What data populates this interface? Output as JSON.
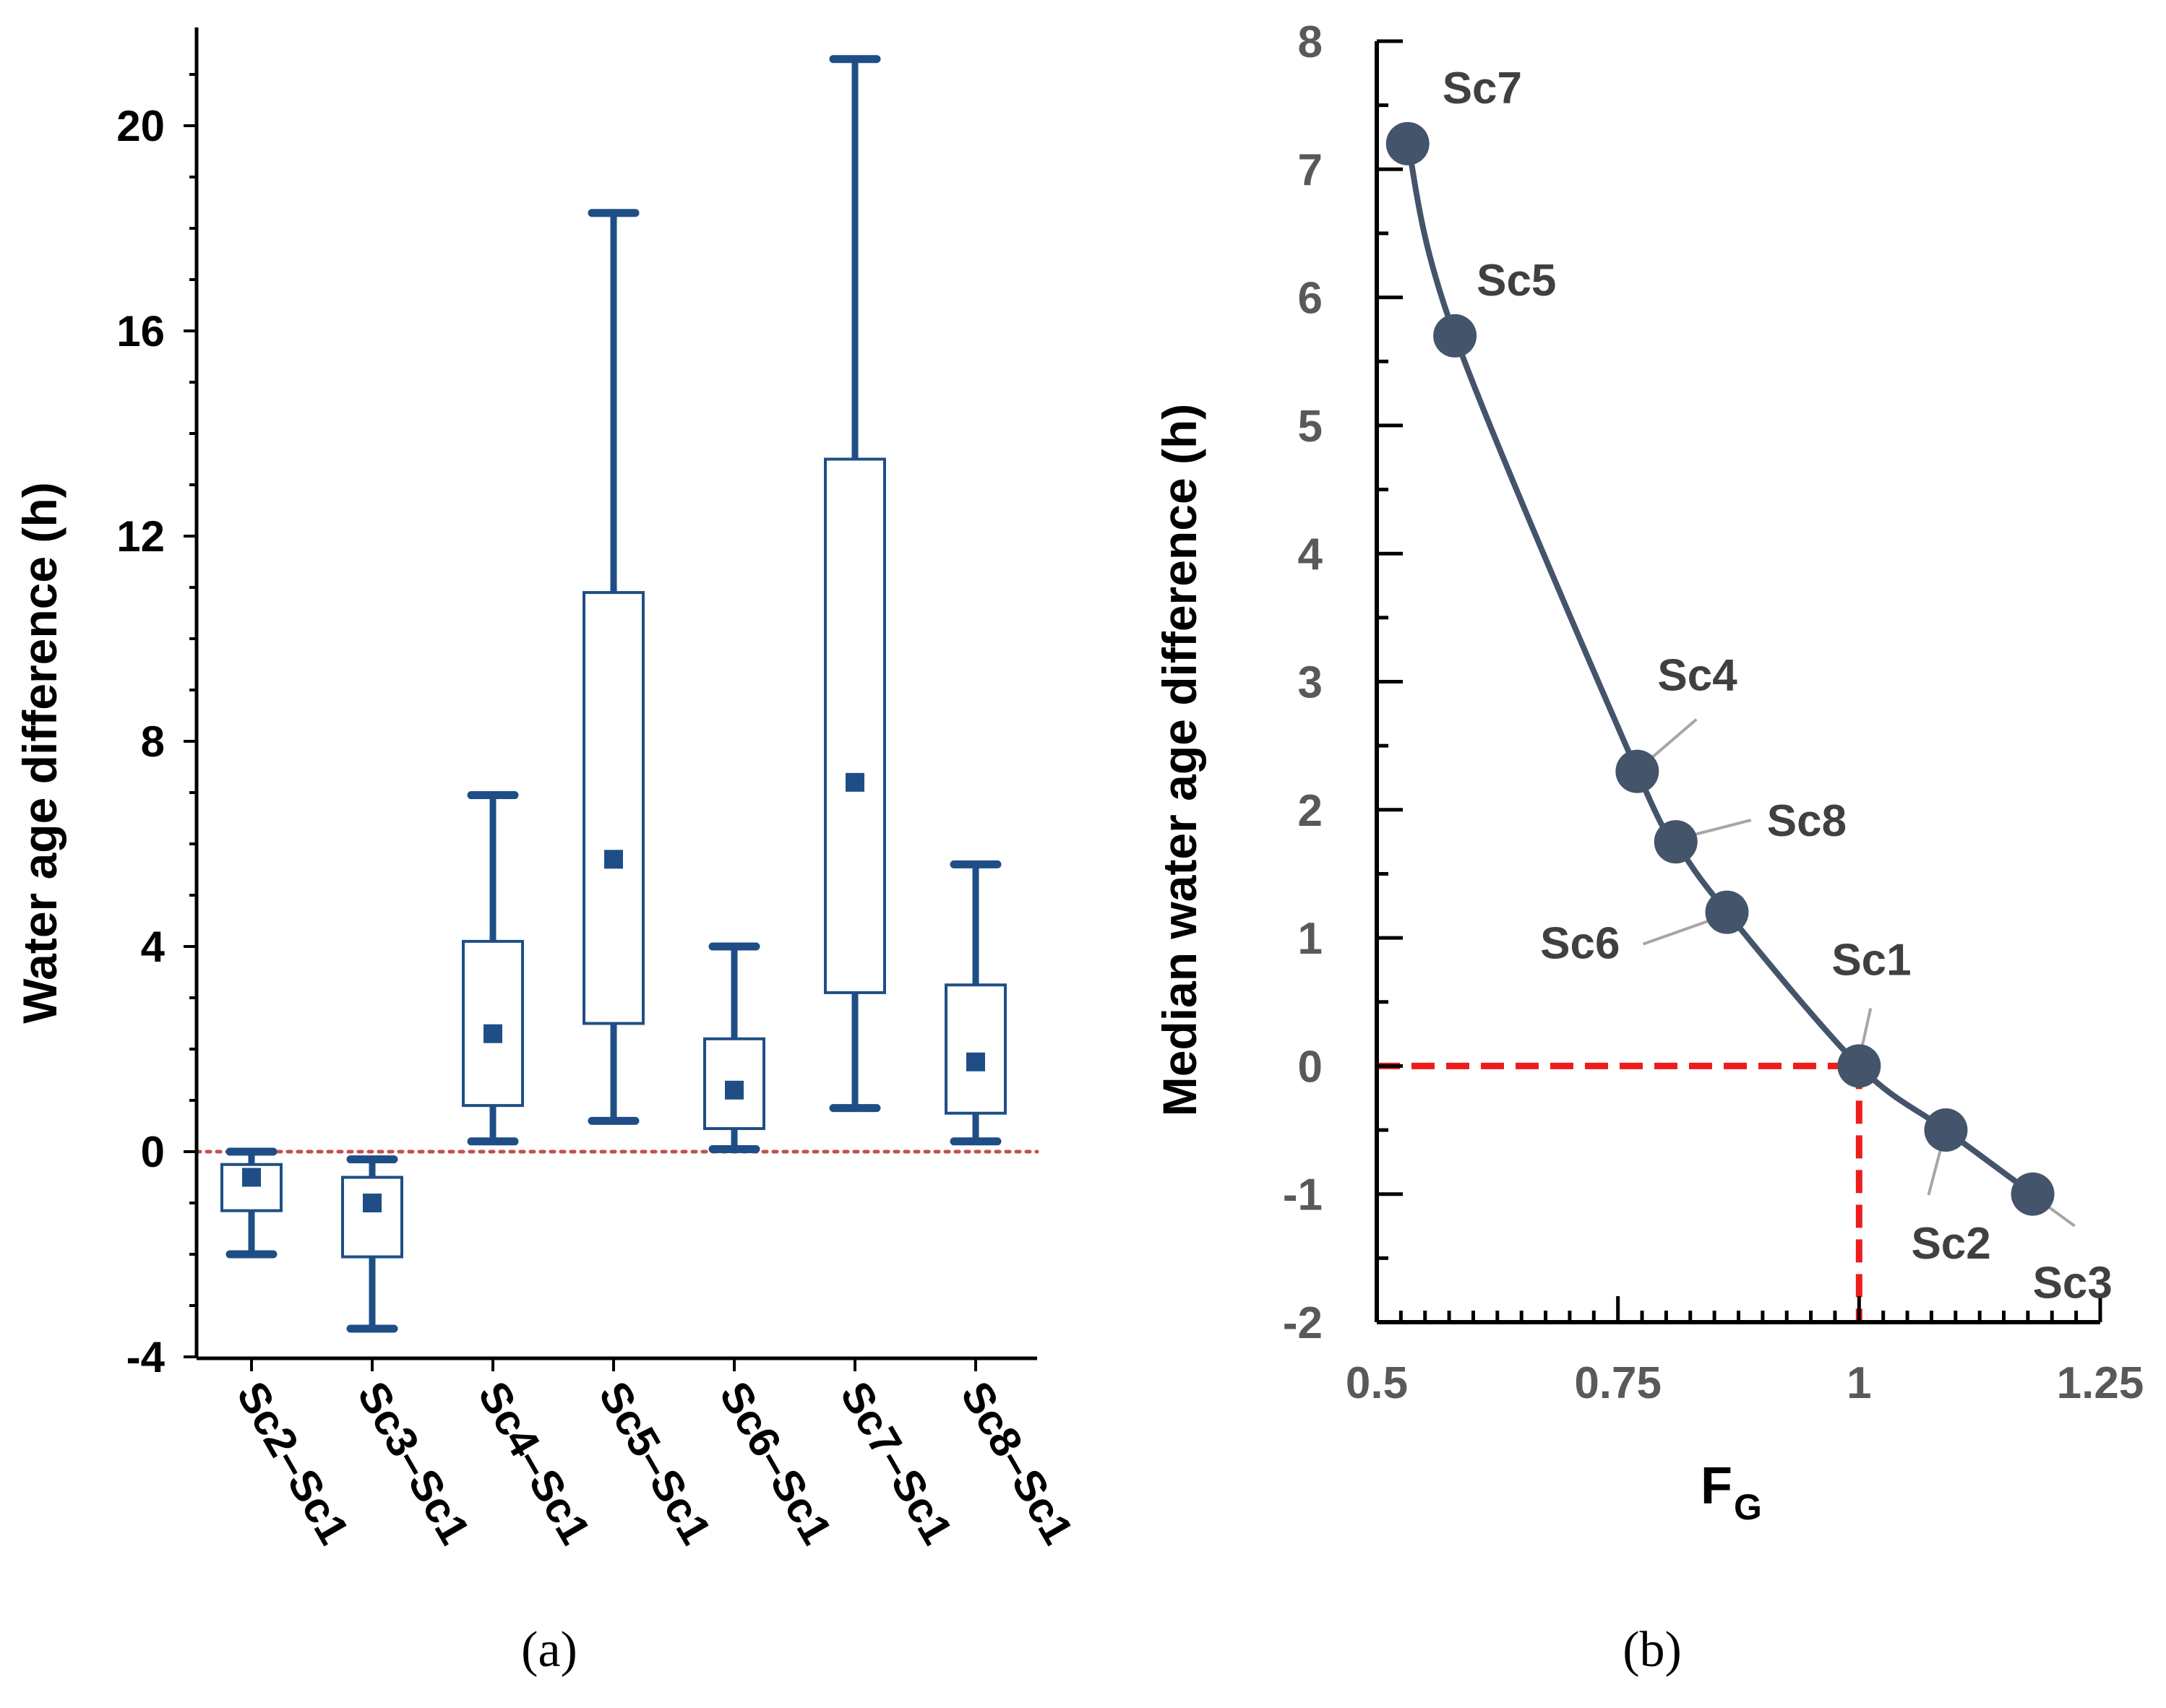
{
  "chart_data": [
    {
      "panel": "a",
      "type": "box",
      "caption": "(a)",
      "ylabel": "Water age difference (h)",
      "xlabel": "",
      "ylim": [
        -4,
        22
      ],
      "yticks": [
        "-4",
        "0",
        "4",
        "8",
        "12",
        "16",
        "20"
      ],
      "reference_line": 0,
      "categories": [
        "Sc2–Sc1",
        "Sc3–Sc1",
        "Sc4–Sc1",
        "Sc5–Sc1",
        "Sc6–Sc1",
        "Sc7–Sc1",
        "Sc8–Sc1"
      ],
      "boxes": [
        {
          "min": -2.0,
          "q1": -1.15,
          "median": -0.5,
          "q3": -0.25,
          "max": 0.0
        },
        {
          "min": -3.45,
          "q1": -2.05,
          "median": -1.0,
          "q3": -0.5,
          "max": -0.15
        },
        {
          "min": 0.2,
          "q1": 0.9,
          "median": 2.3,
          "q3": 4.1,
          "max": 6.95
        },
        {
          "min": 0.6,
          "q1": 2.5,
          "median": 5.7,
          "q3": 10.9,
          "max": 18.3
        },
        {
          "min": 0.05,
          "q1": 0.45,
          "median": 1.2,
          "q3": 2.2,
          "max": 4.0
        },
        {
          "min": 0.85,
          "q1": 3.1,
          "median": 7.2,
          "q3": 13.5,
          "max": 21.3
        },
        {
          "min": 0.2,
          "q1": 0.75,
          "median": 1.75,
          "q3": 3.25,
          "max": 5.6
        }
      ]
    },
    {
      "panel": "b",
      "type": "line",
      "caption": "(b)",
      "xlabel_main": "F",
      "xlabel_sub": "G",
      "ylabel": "Median water age difference (h)",
      "xlim": [
        0.5,
        1.25
      ],
      "ylim": [
        -2,
        8
      ],
      "xticks": [
        0.5,
        0.75,
        1.0,
        1.25
      ],
      "xtick_labels": [
        "0.5",
        "0.75",
        "1",
        "1.25"
      ],
      "yticks": [
        -2,
        -1,
        0,
        1,
        2,
        3,
        4,
        5,
        6,
        7,
        8
      ],
      "ytick_labels": [
        "-2",
        "-1",
        "0",
        "1",
        "2",
        "3",
        "4",
        "5",
        "6",
        "7",
        "8"
      ],
      "points": [
        {
          "name": "Sc7",
          "x": 0.532,
          "y": 7.2
        },
        {
          "name": "Sc5",
          "x": 0.581,
          "y": 5.7
        },
        {
          "name": "Sc4",
          "x": 0.77,
          "y": 2.3
        },
        {
          "name": "Sc8",
          "x": 0.81,
          "y": 1.75
        },
        {
          "name": "Sc6",
          "x": 0.863,
          "y": 1.2
        },
        {
          "name": "Sc1",
          "x": 1.0,
          "y": 0.0
        },
        {
          "name": "Sc2",
          "x": 1.09,
          "y": -0.5
        },
        {
          "name": "Sc3",
          "x": 1.18,
          "y": -1.0
        }
      ],
      "reference": {
        "x": 1.0,
        "y": 0.0
      }
    }
  ]
}
